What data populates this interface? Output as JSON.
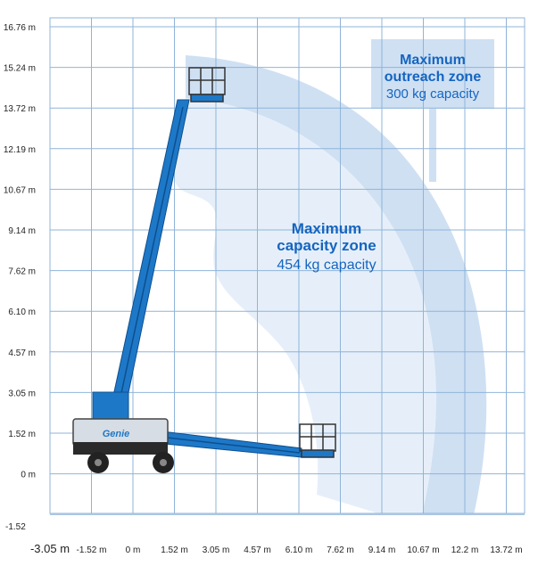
{
  "diagram": {
    "x_ticks": [
      "-3.05 m",
      "-1.52 m",
      "0 m",
      "1.52 m",
      "3.05 m",
      "4.57 m",
      "6.10 m",
      "7.62 m",
      "9.14 m",
      "10.67 m",
      "12.2 m",
      "13.72 m"
    ],
    "y_ticks": [
      "16.76 m",
      "15.24 m",
      "13.72 m",
      "12.19 m",
      "10.67 m",
      "9.14 m",
      "7.62 m",
      "6.10 m",
      "4.57 m",
      "3.05 m",
      "1.52 m",
      "0 m",
      "-1.52"
    ],
    "zones": {
      "outreach": {
        "title_line1": "Maximum",
        "title_line2": "outreach zone",
        "capacity": "300 kg capacity"
      },
      "capacity": {
        "title_line1": "Maximum",
        "title_line2": "capacity zone",
        "capacity": "454 kg capacity"
      }
    },
    "machine": {
      "brand": "Genie"
    },
    "colors": {
      "grid": "#8fb4d9",
      "outreach_zone": "#cfe0f3",
      "capacity_zone": "#e6eff9",
      "boom_blue": "#1e78c8",
      "label_blue": "#1565c0"
    }
  }
}
